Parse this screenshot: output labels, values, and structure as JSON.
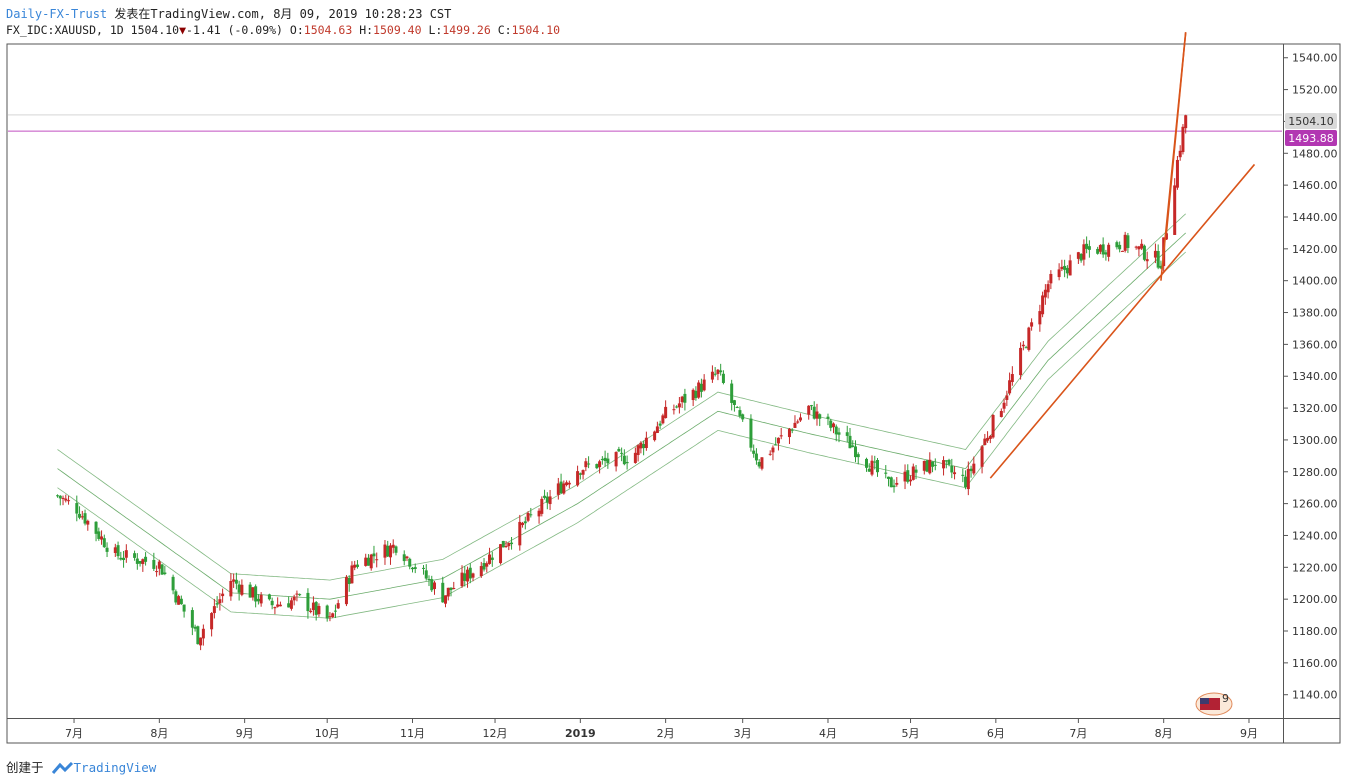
{
  "header": {
    "author": "Daily-FX-Trust",
    "published": "发表在TradingView.com, 8月 09, 2019 10:28:23 CST",
    "symbol": "FX_IDC:XAUUSD, 1D",
    "last": "1504.10",
    "change": "-1.41 (-0.09%)",
    "o_label": "O:",
    "o": "1504.63",
    "h_label": "H:",
    "h": "1509.40",
    "l_label": "L:",
    "l": "1499.26",
    "c_label": "C:",
    "c": "1504.10"
  },
  "footer": {
    "created": "创建于",
    "brand": "TradingView"
  },
  "colors": {
    "up": "#c62828",
    "down": "#2e9e3a",
    "ma": "#5aa25a",
    "trend": "#d9541a",
    "hline": "#c14fc1",
    "last_bg": "#d9d9d9",
    "hline_bg": "#b237b2"
  },
  "price_labels": {
    "last": "1504.10",
    "hline": "1493.88"
  },
  "badge": {
    "text": "9"
  },
  "chart_data": {
    "type": "candlestick",
    "symbol": "FX_IDC:XAUUSD",
    "interval": "1D",
    "ylim": [
      1126,
      1548
    ],
    "y_ticks": [
      1140,
      1160,
      1180,
      1200,
      1220,
      1240,
      1260,
      1280,
      1300,
      1320,
      1340,
      1360,
      1380,
      1400,
      1420,
      1440,
      1460,
      1480,
      1500,
      1520,
      1540
    ],
    "x_labels": [
      "7月",
      "8月",
      "9月",
      "10月",
      "11月",
      "12月",
      "2019",
      "2月",
      "3月",
      "4月",
      "5月",
      "6月",
      "7月",
      "8月",
      "9月"
    ],
    "last_price": 1504.1,
    "horizontal_line": 1493.88,
    "close_path": [
      [
        "2018-06-25",
        1265
      ],
      [
        "2018-07-02",
        1257
      ],
      [
        "2018-07-16",
        1228
      ],
      [
        "2018-08-01",
        1222
      ],
      [
        "2018-08-15",
        1176
      ],
      [
        "2018-08-27",
        1212
      ],
      [
        "2018-09-10",
        1196
      ],
      [
        "2018-09-21",
        1200
      ],
      [
        "2018-10-02",
        1186
      ],
      [
        "2018-10-11",
        1222
      ],
      [
        "2018-10-26",
        1234
      ],
      [
        "2018-11-12",
        1202
      ],
      [
        "2018-11-26",
        1222
      ],
      [
        "2018-12-10",
        1244
      ],
      [
        "2018-12-31",
        1282
      ],
      [
        "2019-01-20",
        1290
      ],
      [
        "2019-02-01",
        1316
      ],
      [
        "2019-02-20",
        1342
      ],
      [
        "2019-03-07",
        1286
      ],
      [
        "2019-03-25",
        1320
      ],
      [
        "2019-04-10",
        1296
      ],
      [
        "2019-04-23",
        1272
      ],
      [
        "2019-05-10",
        1286
      ],
      [
        "2019-05-21",
        1274
      ],
      [
        "2019-06-03",
        1322
      ],
      [
        "2019-06-20",
        1398
      ],
      [
        "2019-07-03",
        1418
      ],
      [
        "2019-07-18",
        1424
      ],
      [
        "2019-07-31",
        1412
      ],
      [
        "2019-08-06",
        1475
      ],
      [
        "2019-08-09",
        1504
      ]
    ],
    "moving_average_band": [
      [
        "2018-06-25",
        1282
      ],
      [
        "2018-08-27",
        1204
      ],
      [
        "2018-10-02",
        1200
      ],
      [
        "2018-11-12",
        1213
      ],
      [
        "2018-12-31",
        1260
      ],
      [
        "2019-02-20",
        1318
      ],
      [
        "2019-03-25",
        1304
      ],
      [
        "2019-05-21",
        1282
      ],
      [
        "2019-06-20",
        1350
      ],
      [
        "2019-08-09",
        1430
      ]
    ],
    "trend_lines": [
      {
        "from": [
          "2019-05-30",
          1276
        ],
        "to": [
          "2019-09-03",
          1473
        ]
      },
      {
        "from": [
          "2019-07-31",
          1400
        ],
        "to": [
          "2019-08-09",
          1556
        ]
      },
      {
        "from": [
          "2019-08-02",
          1430
        ],
        "to": [
          "2019-08-09",
          1556
        ]
      }
    ]
  }
}
